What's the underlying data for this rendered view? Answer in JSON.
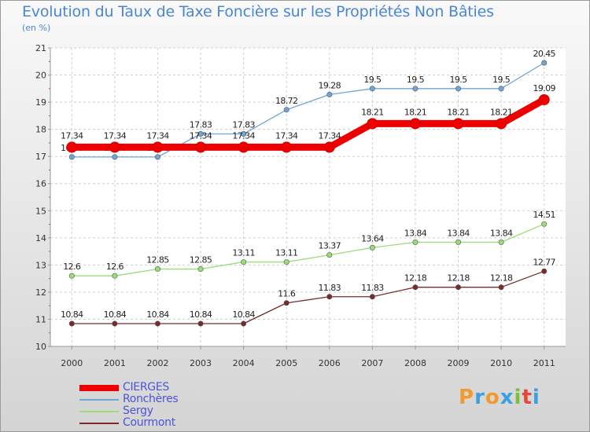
{
  "header": {
    "title": "Evolution du Taux de Taxe Foncière sur les Propriétés Non Bâties",
    "unit": "(en %)"
  },
  "logo": {
    "text": "Proxiti",
    "colors": [
      "#f29a2e",
      "#3ba0e0",
      "#f29a2e",
      "#3ba0e0",
      "#7bbf3a",
      "#e04a3a",
      "#3ba0e0"
    ]
  },
  "chart_data": {
    "type": "line",
    "title": "Evolution du Taux de Taxe Foncière sur les Propriétés Non Bâties",
    "ylabel": "(en %)",
    "x": [
      "2000",
      "2001",
      "2002",
      "2003",
      "2004",
      "2005",
      "2006",
      "2007",
      "2008",
      "2009",
      "2010",
      "2011"
    ],
    "ylim": [
      10,
      21
    ],
    "yticks": [
      "10",
      "11",
      "12",
      "13",
      "14",
      "15",
      "16",
      "17",
      "18",
      "19",
      "20",
      "21"
    ],
    "grid": true,
    "legend_position": "bottom-left",
    "series": [
      {
        "name": "CIERGES",
        "color": "#ee0000",
        "values": [
          17.34,
          17.34,
          17.34,
          17.34,
          17.34,
          17.34,
          17.34,
          18.21,
          18.21,
          18.21,
          18.21,
          19.09
        ],
        "labels": [
          "17.34",
          "17.34",
          "17.34",
          "17.34",
          "17.34",
          "17.34",
          "17.34",
          "18.21",
          "18.21",
          "18.21",
          "18.21",
          "19.09"
        ]
      },
      {
        "name": "Ronchères",
        "color": "#6fa6d6",
        "values": [
          16.98,
          16.98,
          16.98,
          17.83,
          17.83,
          18.72,
          19.28,
          19.5,
          19.5,
          19.5,
          19.5,
          20.45
        ],
        "labels": [
          "16.98",
          "16.98",
          "16.98",
          "17.83",
          "17.83",
          "18.72",
          "19.28",
          "19.5",
          "19.5",
          "19.5",
          "19.5",
          "20.45"
        ]
      },
      {
        "name": "Sergy",
        "color": "#99dd77",
        "values": [
          12.6,
          12.6,
          12.85,
          12.85,
          13.11,
          13.11,
          13.37,
          13.64,
          13.84,
          13.84,
          13.84,
          14.51
        ],
        "labels": [
          "12.6",
          "12.6",
          "12.85",
          "12.85",
          "13.11",
          "13.11",
          "13.37",
          "13.64",
          "13.84",
          "13.84",
          "13.84",
          "14.51"
        ]
      },
      {
        "name": "Courmont",
        "color": "#7a2a2a",
        "values": [
          10.84,
          10.84,
          10.84,
          10.84,
          10.84,
          11.6,
          11.83,
          11.83,
          12.18,
          12.18,
          12.18,
          12.77
        ],
        "labels": [
          "10.84",
          "10.84",
          "10.84",
          "10.84",
          "10.84",
          "11.6",
          "11.83",
          "11.83",
          "12.18",
          "12.18",
          "12.18",
          "12.77"
        ]
      }
    ]
  }
}
